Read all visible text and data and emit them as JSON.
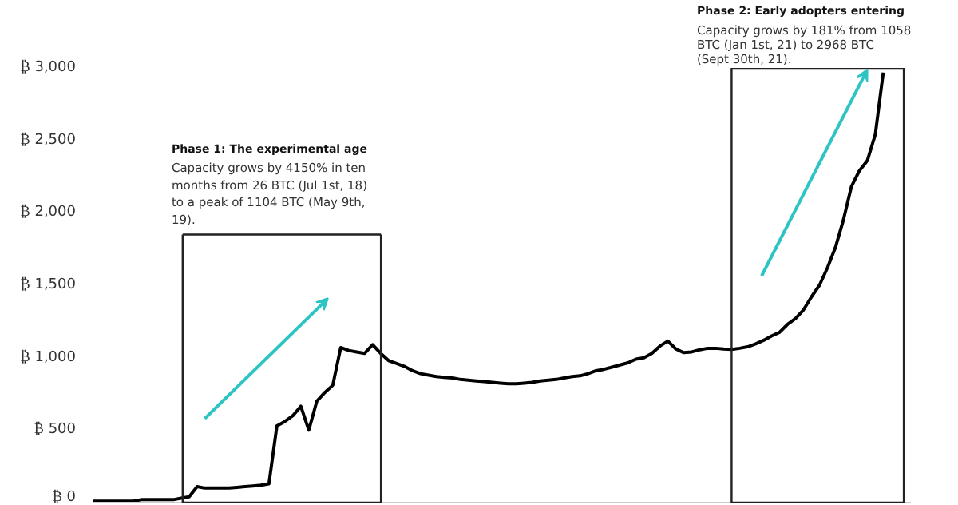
{
  "chart_data": {
    "type": "line",
    "categories": [
      null,
      null,
      null,
      null,
      null,
      null,
      null,
      null,
      null,
      null,
      null,
      null,
      null,
      null,
      null,
      null,
      null,
      null,
      null,
      null,
      null,
      null,
      null,
      null,
      null,
      null,
      null,
      null,
      null,
      null,
      null,
      null,
      null,
      null,
      null,
      null,
      null,
      null,
      null,
      null,
      null,
      null,
      null,
      null,
      null,
      null,
      null,
      null,
      null,
      null,
      null,
      null,
      null,
      null,
      null,
      null,
      null,
      null,
      null,
      null,
      null,
      null,
      null,
      null,
      null,
      null,
      null,
      null,
      null,
      null,
      null,
      null,
      null,
      null,
      null,
      null,
      null,
      null,
      null,
      null,
      null,
      null,
      null,
      null,
      null,
      null,
      null,
      null,
      null,
      null,
      null,
      null,
      null,
      null,
      null,
      null,
      null,
      null,
      null,
      null
    ],
    "series": [
      {
        "color": "#000000",
        "values": [
          10,
          10,
          10,
          10,
          10,
          10,
          20,
          20,
          20,
          20,
          20,
          30,
          40,
          110,
          100,
          100,
          100,
          100,
          105,
          110,
          115,
          120,
          130,
          530,
          560,
          600,
          665,
          500,
          700,
          760,
          810,
          1070,
          1050,
          1040,
          1030,
          1090,
          1030,
          980,
          960,
          940,
          910,
          890,
          880,
          870,
          865,
          860,
          850,
          845,
          840,
          835,
          830,
          825,
          820,
          820,
          825,
          830,
          840,
          845,
          850,
          860,
          870,
          875,
          890,
          910,
          920,
          935,
          950,
          965,
          990,
          1000,
          1030,
          1080,
          1115,
          1060,
          1035,
          1040,
          1055,
          1065,
          1065,
          1060,
          1058,
          1065,
          1075,
          1095,
          1120,
          1150,
          1175,
          1230,
          1270,
          1330,
          1420,
          1500,
          1620,
          1760,
          1950,
          2180,
          2290,
          2360,
          2540,
          2968
        ]
      }
    ],
    "ylim": [
      0,
      3000
    ],
    "yticks": [
      {
        "value": 0,
        "label": "₿ 0"
      },
      {
        "value": 500,
        "label": "₿ 500"
      },
      {
        "value": 1000,
        "label": "₿ 1,000"
      },
      {
        "value": 1500,
        "label": "₿ 1,500"
      },
      {
        "value": 2000,
        "label": "₿ 2,000"
      },
      {
        "value": 2500,
        "label": "₿ 2,500"
      },
      {
        "value": 3000,
        "label": "₿ 3,000"
      }
    ],
    "tick_labels": "y",
    "grid": false,
    "annotations": [
      "Phase 1: The experimental age",
      "Capacity grows by 4150% in ten months from 26 BTC (Jul 1st, 18) to a peak of 1104 BTC (May 9th, 19).",
      "Phase 2: Early adopters entering",
      "Capacity grows by 181% from 1058 BTC (Jan 1st, 21) to 2968 BTC (Sept 30th, 21)."
    ]
  }
}
